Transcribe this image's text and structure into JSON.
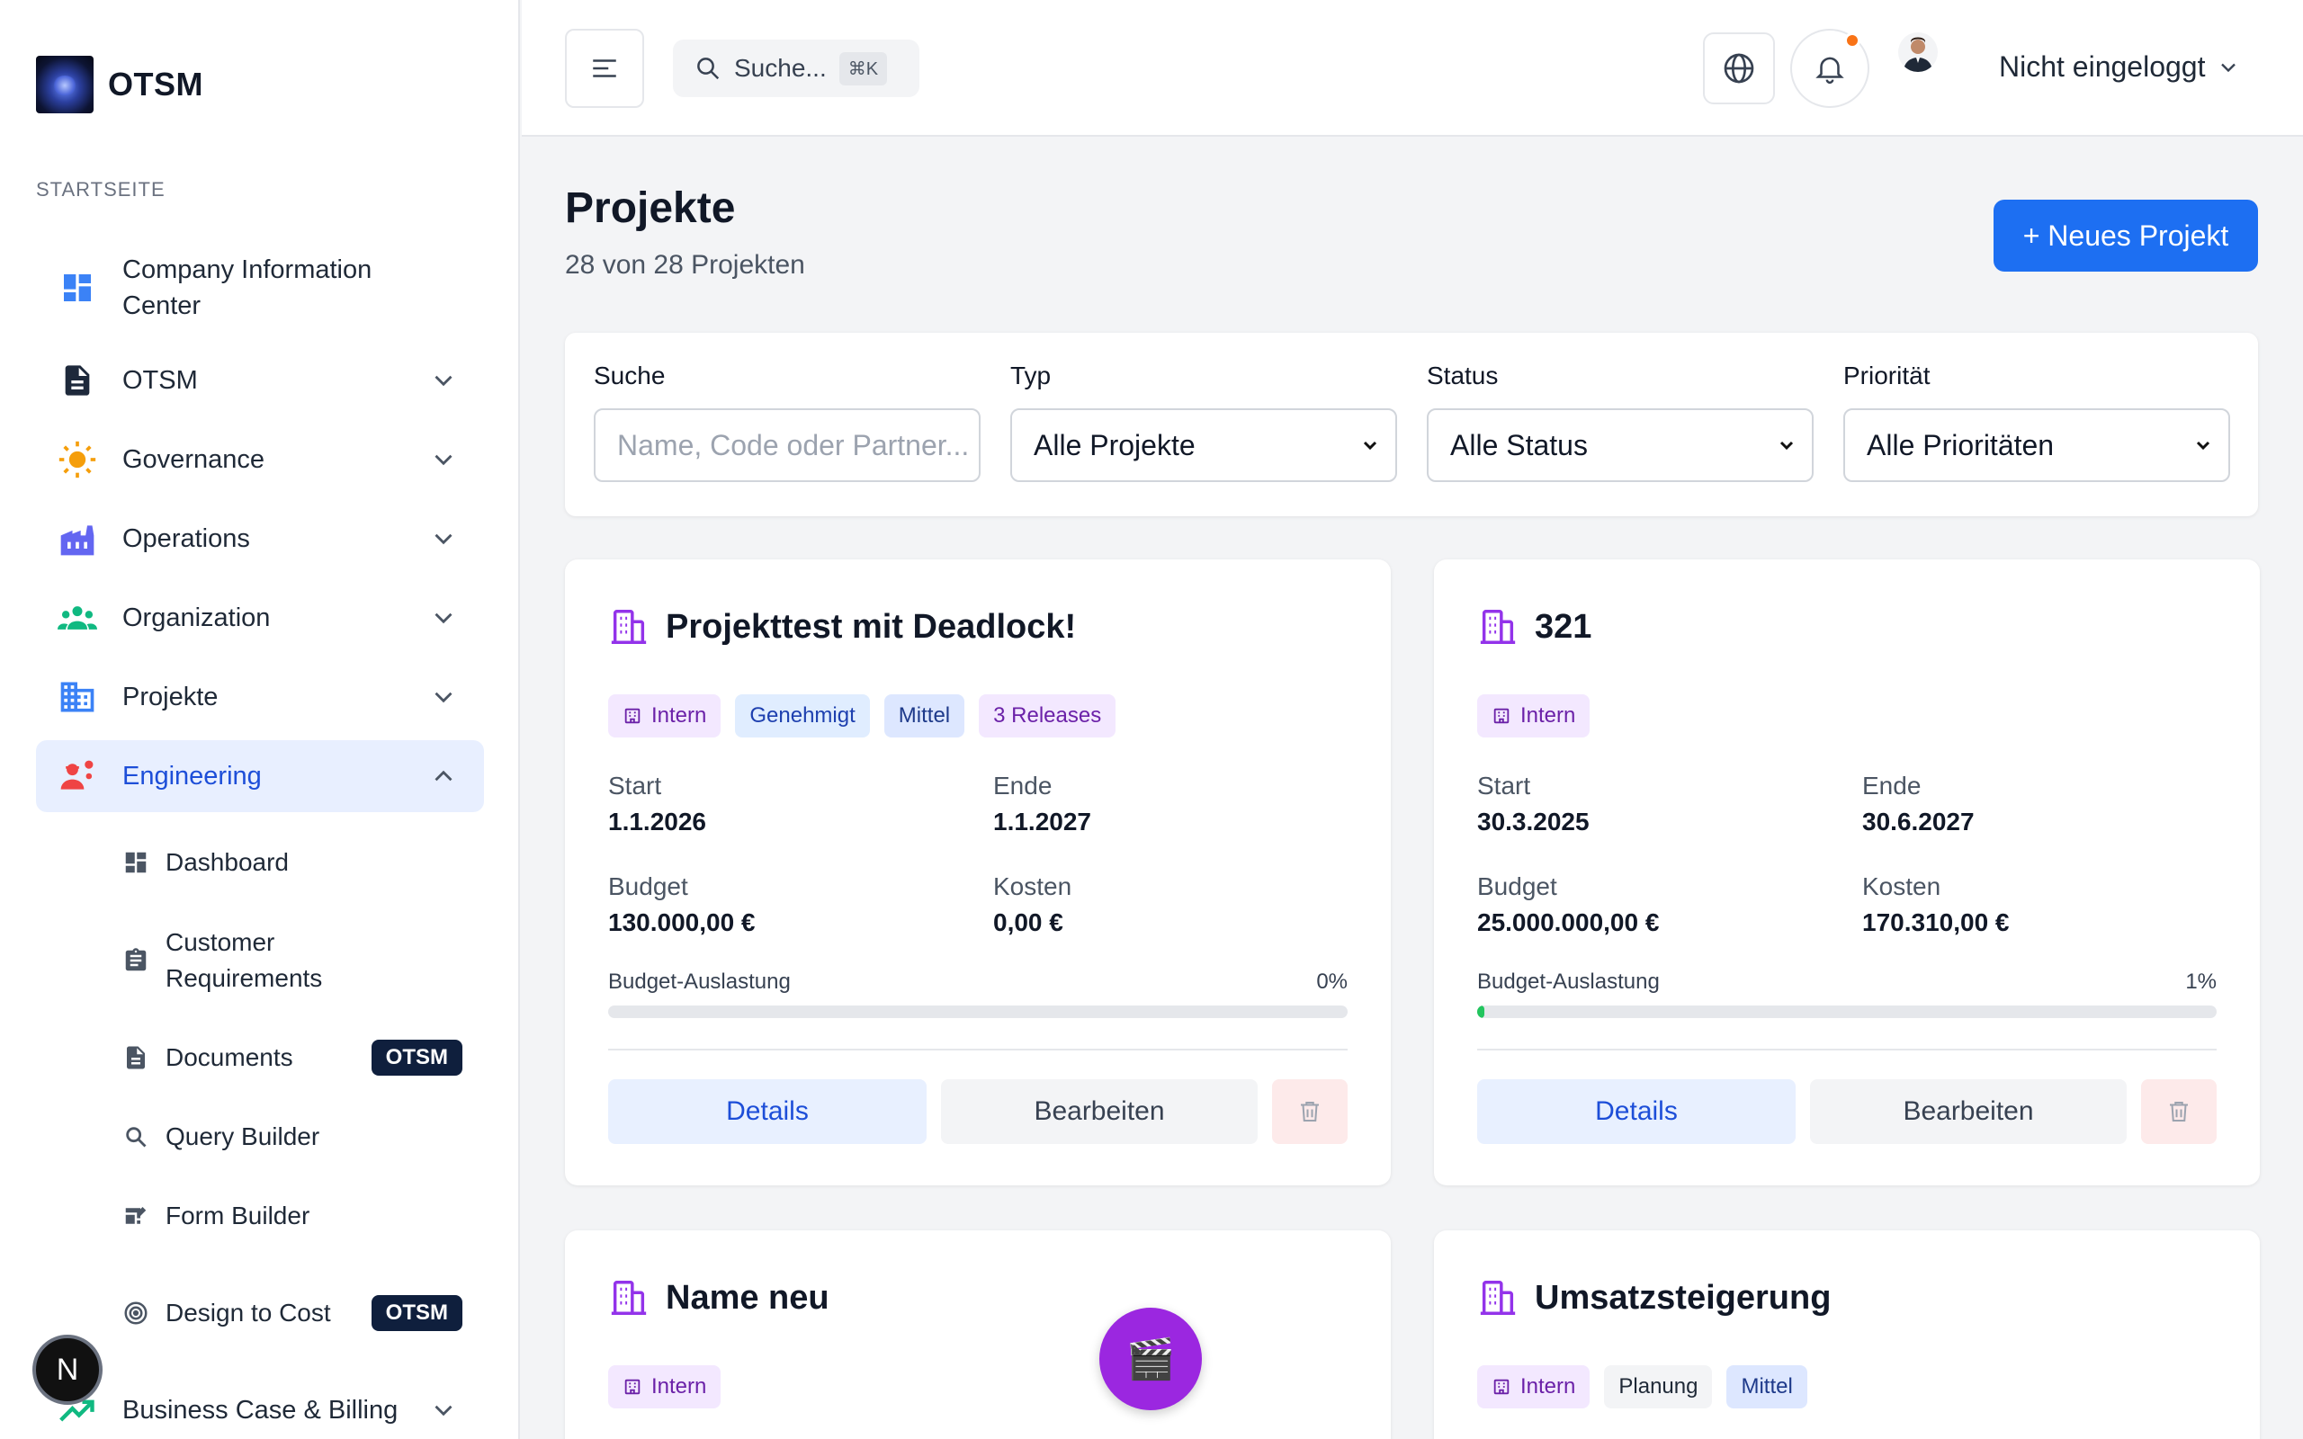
{
  "brand": {
    "name": "OTSM"
  },
  "sidebar": {
    "section_label": "STARTSEITE",
    "items": [
      {
        "label": "Company Information Center",
        "icon": "dashboard-icon"
      },
      {
        "label": "OTSM",
        "icon": "document-icon"
      },
      {
        "label": "Governance",
        "icon": "sun-icon"
      },
      {
        "label": "Operations",
        "icon": "factory-icon"
      },
      {
        "label": "Organization",
        "icon": "people-icon"
      },
      {
        "label": "Projekte",
        "icon": "building-icon"
      },
      {
        "label": "Engineering",
        "icon": "engineer-icon"
      }
    ],
    "sub_items": [
      {
        "label": "Dashboard",
        "icon": "dashboard-icon"
      },
      {
        "label": "Customer Requirements",
        "icon": "clipboard-icon"
      },
      {
        "label": "Documents",
        "icon": "document-icon",
        "badge": "OTSM"
      },
      {
        "label": "Query Builder",
        "icon": "search-icon"
      },
      {
        "label": "Form Builder",
        "icon": "form-icon"
      },
      {
        "label": "Design to Cost",
        "icon": "target-icon",
        "badge": "OTSM"
      }
    ],
    "business_case": {
      "label": "Business Case & Billing",
      "icon": "trending-up-icon"
    },
    "n_badge": "N"
  },
  "header": {
    "search_placeholder": "Suche...",
    "search_shortcut": "⌘K",
    "user_label": "Nicht eingeloggt"
  },
  "page": {
    "title": "Projekte",
    "subtitle": "28 von 28 Projekten",
    "new_button": "+ Neues Projekt"
  },
  "filters": {
    "search": {
      "label": "Suche",
      "placeholder": "Name, Code oder Partner..."
    },
    "type": {
      "label": "Typ",
      "value": "Alle Projekte"
    },
    "status": {
      "label": "Status",
      "value": "Alle Status"
    },
    "priority": {
      "label": "Priorität",
      "value": "Alle Prioritäten"
    }
  },
  "labels": {
    "start": "Start",
    "end": "Ende",
    "budget": "Budget",
    "costs": "Kosten",
    "budget_usage": "Budget-Auslastung",
    "details": "Details",
    "edit": "Bearbeiten"
  },
  "projects": [
    {
      "title": "Projekttest mit Deadlock!",
      "tags": [
        "Intern",
        "Genehmigt",
        "Mittel",
        "3 Releases"
      ],
      "start": "1.1.2026",
      "end": "1.1.2027",
      "budget": "130.000,00 €",
      "costs": "0,00 €",
      "usage_label": "0%",
      "usage": 0
    },
    {
      "title": "321",
      "tags": [
        "Intern"
      ],
      "start": "30.3.2025",
      "end": "30.6.2027",
      "budget": "25.000.000,00 €",
      "costs": "170.310,00 €",
      "usage_label": "1%",
      "usage": 1
    },
    {
      "title": "Name neu",
      "tags": [
        "Intern"
      ]
    },
    {
      "title": "Umsatzsteigerung",
      "tags": [
        "Intern",
        "Planung",
        "Mittel"
      ]
    }
  ],
  "colors": {
    "primary": "#1d6ff2",
    "project_icon": "#9333ea",
    "fab": "#9b27e0"
  }
}
